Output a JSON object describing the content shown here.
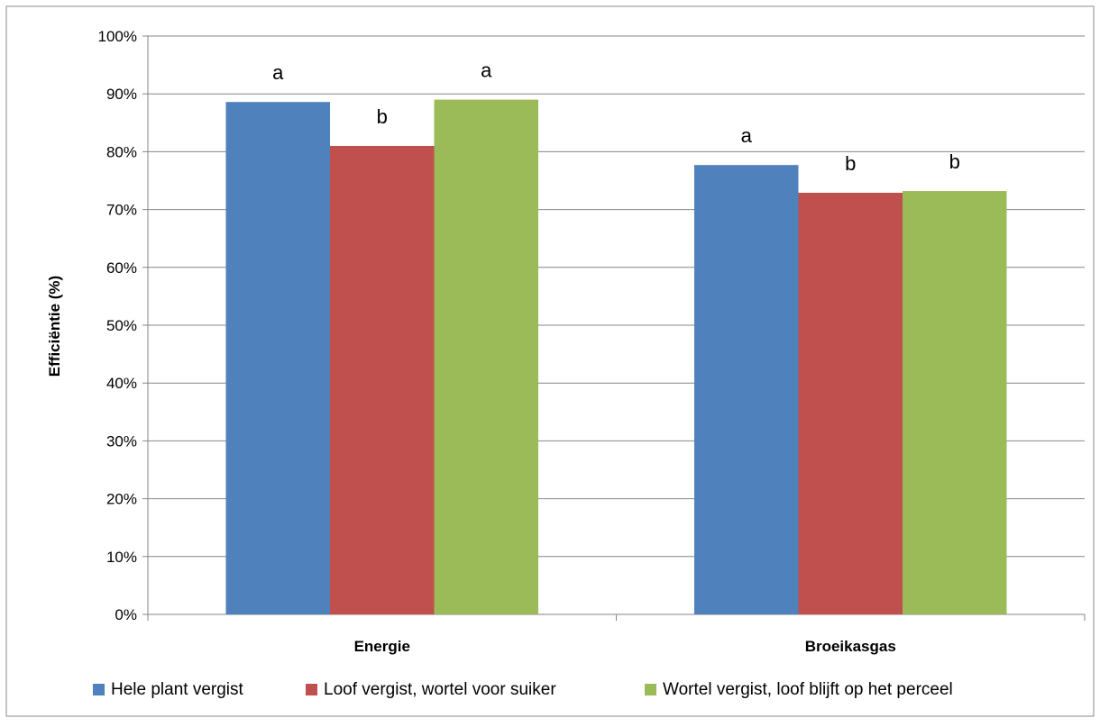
{
  "chart_data": {
    "type": "bar",
    "title": "",
    "xlabel": "",
    "ylabel": "Efficiëntie (%)",
    "ylim": [
      0,
      100
    ],
    "y_ticks": [
      0,
      10,
      20,
      30,
      40,
      50,
      60,
      70,
      80,
      90,
      100
    ],
    "y_tick_suffix": "%",
    "categories": [
      "Energie",
      "Broeikasgas"
    ],
    "grid": true,
    "legend_position": "bottom",
    "series": [
      {
        "name": "Hele plant vergist",
        "color": "#4F81BD",
        "values": [
          88.6,
          77.7
        ],
        "labels": [
          "a",
          "a"
        ]
      },
      {
        "name": "Loof vergist, wortel voor suiker",
        "color": "#C0504D",
        "values": [
          81.0,
          72.9
        ],
        "labels": [
          "b",
          "b"
        ]
      },
      {
        "name": "Wortel vergist, loof blijft op het perceel",
        "color": "#9BBB59",
        "values": [
          89.0,
          73.2
        ],
        "labels": [
          "a",
          "b"
        ]
      }
    ]
  }
}
